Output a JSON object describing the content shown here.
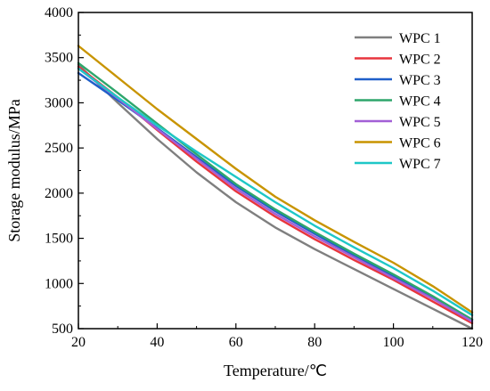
{
  "chart_data": {
    "type": "line",
    "xlabel": "Temperature/℃",
    "ylabel": "Storage modulus/MPa",
    "xlim": [
      20,
      120
    ],
    "ylim": [
      500,
      4000
    ],
    "x_ticks": [
      20,
      40,
      60,
      80,
      100,
      120
    ],
    "y_ticks": [
      500,
      1000,
      1500,
      2000,
      2500,
      3000,
      3500,
      4000
    ],
    "grid": false,
    "legend_position": "top-right",
    "x": [
      20,
      30,
      40,
      50,
      60,
      70,
      80,
      90,
      100,
      110,
      120
    ],
    "series": [
      {
        "name": "WPC 1",
        "color": "#7f7f7f",
        "values": [
          3420,
          3000,
          2600,
          2230,
          1900,
          1620,
          1380,
          1160,
          940,
          720,
          500
        ]
      },
      {
        "name": "WPC 2",
        "color": "#e8353d",
        "values": [
          3400,
          3060,
          2700,
          2350,
          2020,
          1740,
          1490,
          1260,
          1040,
          800,
          560
        ]
      },
      {
        "name": "WPC 3",
        "color": "#1f5fc9",
        "values": [
          3330,
          3030,
          2720,
          2400,
          2080,
          1800,
          1550,
          1310,
          1080,
          850,
          600
        ]
      },
      {
        "name": "WPC 4",
        "color": "#2ea66b",
        "values": [
          3440,
          3110,
          2770,
          2430,
          2100,
          1820,
          1570,
          1330,
          1100,
          860,
          600
        ]
      },
      {
        "name": "WPC 5",
        "color": "#a25fd6",
        "values": [
          3380,
          3050,
          2710,
          2380,
          2050,
          1770,
          1520,
          1290,
          1060,
          830,
          580
        ]
      },
      {
        "name": "WPC 6",
        "color": "#c89400",
        "values": [
          3630,
          3280,
          2930,
          2600,
          2270,
          1960,
          1700,
          1460,
          1230,
          970,
          680
        ]
      },
      {
        "name": "WPC 7",
        "color": "#1ec7c7",
        "values": [
          3380,
          3060,
          2750,
          2460,
          2180,
          1900,
          1640,
          1400,
          1170,
          920,
          650
        ]
      }
    ]
  }
}
